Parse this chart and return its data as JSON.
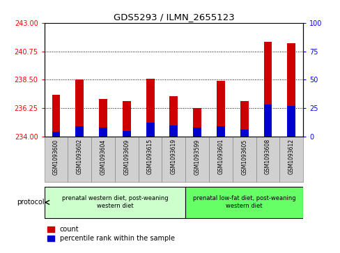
{
  "title": "GDS5293 / ILMN_2655123",
  "samples": [
    "GSM1093600",
    "GSM1093602",
    "GSM1093604",
    "GSM1093609",
    "GSM1093615",
    "GSM1093619",
    "GSM1093599",
    "GSM1093601",
    "GSM1093605",
    "GSM1093608",
    "GSM1093612"
  ],
  "count_values": [
    237.3,
    238.5,
    237.0,
    236.8,
    238.6,
    237.2,
    236.25,
    238.4,
    236.8,
    241.5,
    241.4
  ],
  "percentile_values": [
    4,
    9,
    8,
    5,
    12,
    10,
    8,
    9,
    6,
    28,
    27
  ],
  "y_min": 234,
  "y_max": 243,
  "y_ticks": [
    234,
    236.25,
    238.5,
    240.75,
    243
  ],
  "y_right_ticks": [
    0,
    25,
    50,
    75,
    100
  ],
  "bar_color": "#cc0000",
  "percentile_color": "#0000cc",
  "group1_label": "prenatal western diet, post-weaning\nwestern diet",
  "group2_label": "prenatal low-fat diet, post-weaning\nwestern diet",
  "group1_indices": [
    0,
    1,
    2,
    3,
    4,
    5
  ],
  "group2_indices": [
    6,
    7,
    8,
    9,
    10
  ],
  "protocol_label": "protocol",
  "legend_count": "count",
  "legend_percentile": "percentile rank within the sample",
  "group1_bg": "#ccffcc",
  "group2_bg": "#66ff66",
  "label_bg": "#d0d0d0"
}
